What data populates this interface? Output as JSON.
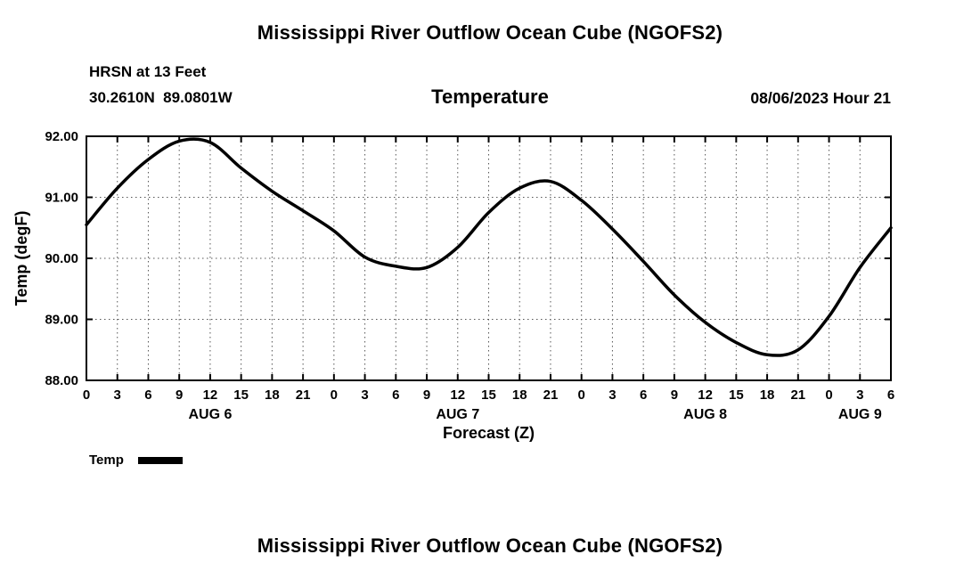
{
  "page": {
    "title_top": "Mississippi River Outflow Ocean Cube (NGOFS2)",
    "title_bottom": "Mississippi River Outflow Ocean Cube (NGOFS2)"
  },
  "header": {
    "station": "HRSN at 13 Feet",
    "coords": "30.2610N  89.0801W",
    "plot_title": "Temperature",
    "datetime": "08/06/2023 Hour 21"
  },
  "chart_data": {
    "type": "line",
    "title": "Temperature",
    "xlabel": "Forecast (Z)",
    "ylabel": "Temp (degF)",
    "xlim": [
      0,
      78
    ],
    "ylim": [
      88.0,
      92.0
    ],
    "grid": "dotted",
    "legend_position": "below-left",
    "x_tick_hours": [
      0,
      3,
      6,
      9,
      12,
      15,
      18,
      21,
      24,
      27,
      30,
      33,
      36,
      39,
      42,
      45,
      48,
      51,
      54,
      57,
      60,
      63,
      66,
      69,
      72,
      75,
      78
    ],
    "x_tick_labels": [
      "0",
      "3",
      "6",
      "9",
      "12",
      "15",
      "18",
      "21",
      "0",
      "3",
      "6",
      "9",
      "12",
      "15",
      "18",
      "21",
      "0",
      "3",
      "6",
      "9",
      "12",
      "15",
      "18",
      "21",
      "0",
      "3",
      "6"
    ],
    "y_tick_values": [
      88,
      89,
      90,
      91,
      92
    ],
    "y_tick_labels": [
      "88.00",
      "89.00",
      "90.00",
      "91.00",
      "92.00"
    ],
    "day_labels": [
      {
        "label": "AUG 6",
        "center_hour": 12
      },
      {
        "label": "AUG 7",
        "center_hour": 36
      },
      {
        "label": "AUG 8",
        "center_hour": 60
      },
      {
        "label": "AUG 9",
        "center_hour": 75
      }
    ],
    "series": [
      {
        "name": "Temp",
        "x": [
          0,
          3,
          6,
          9,
          12,
          15,
          18,
          21,
          24,
          27,
          30,
          33,
          36,
          39,
          42,
          45,
          48,
          51,
          54,
          57,
          60,
          63,
          66,
          69,
          72,
          75,
          78
        ],
        "values": [
          90.55,
          91.15,
          91.62,
          91.92,
          91.9,
          91.48,
          91.1,
          90.78,
          90.45,
          90.02,
          89.87,
          89.85,
          90.18,
          90.75,
          91.15,
          91.26,
          90.95,
          90.48,
          89.95,
          89.4,
          88.95,
          88.62,
          88.42,
          88.5,
          89.05,
          89.85,
          90.5
        ]
      }
    ]
  }
}
